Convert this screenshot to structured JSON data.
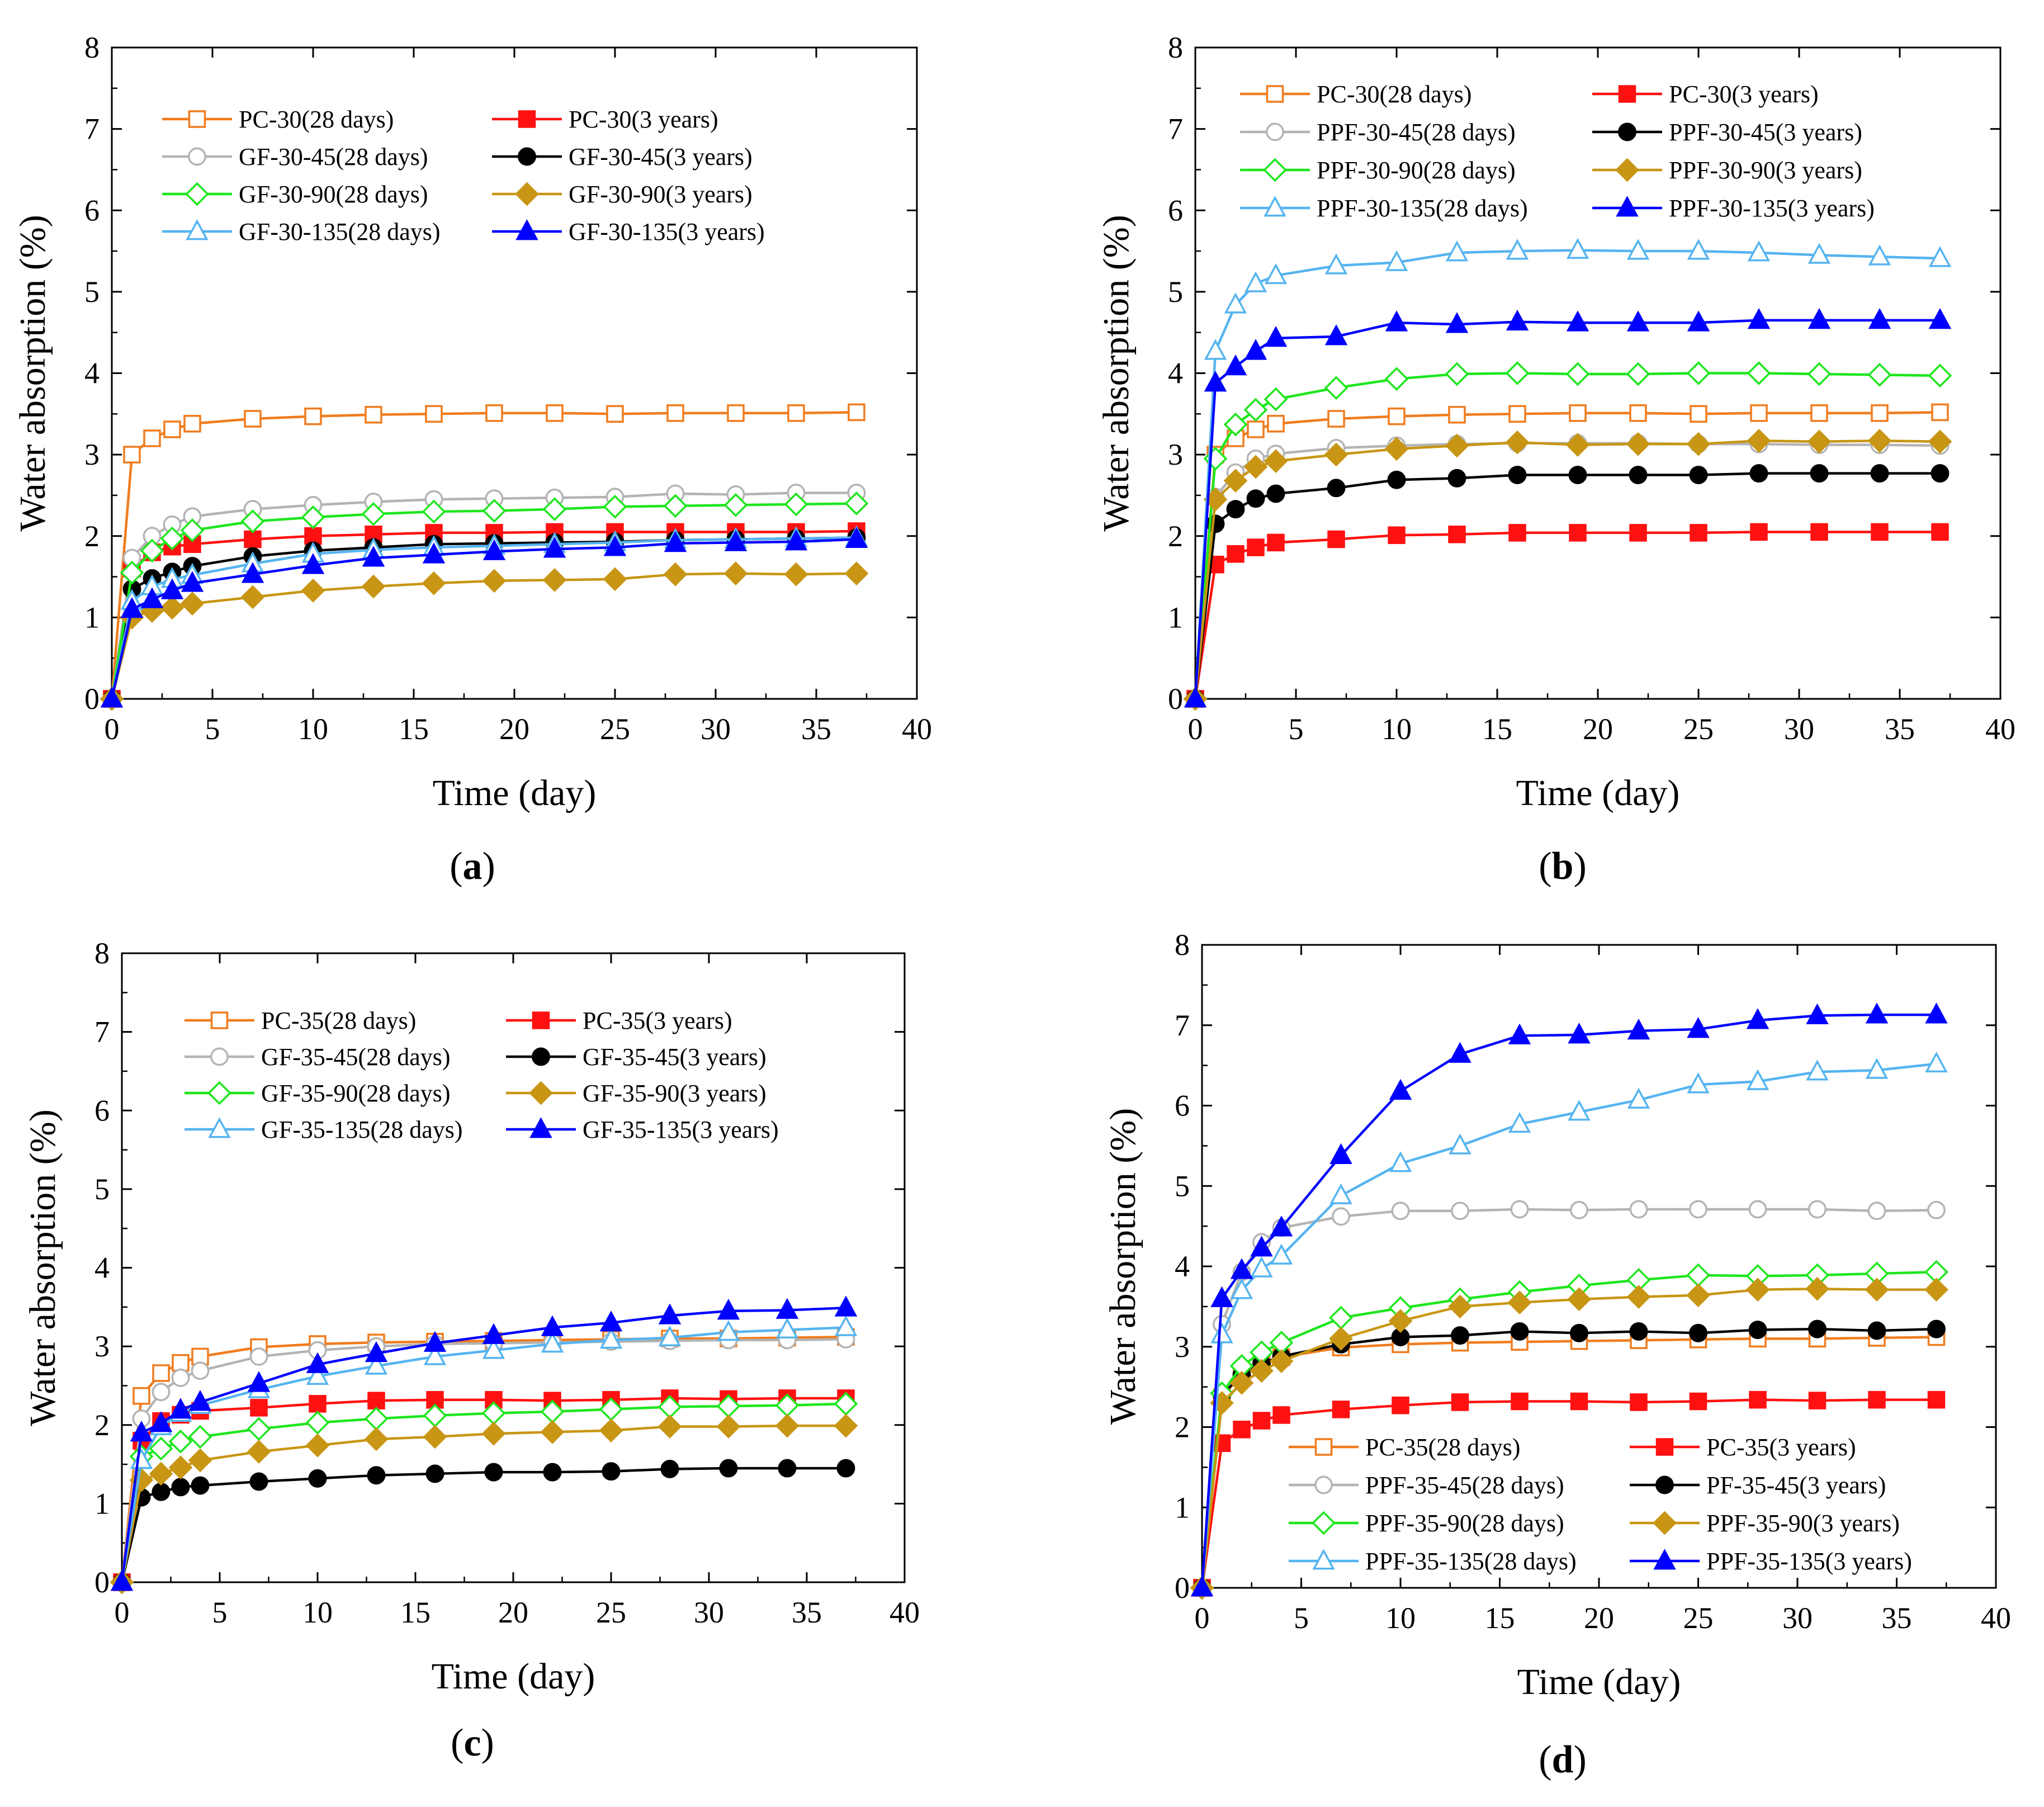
{
  "figure": {
    "captions": [
      "(a)",
      "(b)",
      "(c)",
      "(d)"
    ]
  },
  "styles": {
    "PC-28d": {
      "color": "#f07c1e",
      "marker": "square",
      "filled": false
    },
    "PC-3y": {
      "color": "#ff1111",
      "marker": "square",
      "filled": true
    },
    "45-28d": {
      "color": "#b4b4b4",
      "marker": "circle",
      "filled": false
    },
    "45-3y": {
      "color": "#000000",
      "marker": "circle",
      "filled": true
    },
    "90-28d": {
      "color": "#1ee61e",
      "marker": "diamond",
      "filled": false
    },
    "90-3y": {
      "color": "#c89614",
      "marker": "diamond",
      "filled": true
    },
    "135-28d": {
      "color": "#55b4f0",
      "marker": "triangle",
      "filled": false
    },
    "135-3y": {
      "color": "#0000ff",
      "marker": "triangle",
      "filled": true
    }
  },
  "chart_data": [
    {
      "id": "a",
      "type": "line",
      "caption": "(a)",
      "xlabel": "Time (day)",
      "ylabel": "Water absorption (%)",
      "xlim": [
        0,
        40
      ],
      "ylim": [
        0,
        8
      ],
      "xticks": [
        0,
        5,
        10,
        15,
        20,
        25,
        30,
        35,
        40
      ],
      "yticks": [
        0,
        1,
        2,
        3,
        4,
        5,
        6,
        7,
        8
      ],
      "legend_placement": "top-left",
      "x": [
        0,
        1,
        2,
        3,
        4,
        7,
        10,
        13,
        16,
        19,
        22,
        25,
        28,
        31,
        34,
        37
      ],
      "series": [
        {
          "name": "PC-30(28 days)",
          "style": "PC-28d",
          "values": [
            0,
            3.0,
            3.2,
            3.31,
            3.38,
            3.44,
            3.47,
            3.49,
            3.5,
            3.51,
            3.51,
            3.5,
            3.51,
            3.51,
            3.51,
            3.52
          ]
        },
        {
          "name": "PC-30(3 years)",
          "style": "PC-3y",
          "values": [
            0,
            1.6,
            1.8,
            1.87,
            1.9,
            1.96,
            2.0,
            2.02,
            2.04,
            2.04,
            2.05,
            2.05,
            2.05,
            2.05,
            2.05,
            2.06
          ]
        },
        {
          "name": "GF-30-45(28 days)",
          "style": "45-28d",
          "values": [
            0,
            1.73,
            2.0,
            2.14,
            2.24,
            2.33,
            2.38,
            2.42,
            2.45,
            2.46,
            2.47,
            2.48,
            2.52,
            2.51,
            2.53,
            2.53
          ]
        },
        {
          "name": "GF-30-45(3 years)",
          "style": "45-3y",
          "values": [
            0,
            1.35,
            1.48,
            1.56,
            1.63,
            1.75,
            1.82,
            1.86,
            1.9,
            1.91,
            1.92,
            1.93,
            1.95,
            1.96,
            1.97,
            1.98
          ]
        },
        {
          "name": "GF-30-90(28 days)",
          "style": "90-28d",
          "values": [
            0,
            1.55,
            1.82,
            1.97,
            2.07,
            2.18,
            2.23,
            2.27,
            2.3,
            2.31,
            2.33,
            2.36,
            2.37,
            2.38,
            2.39,
            2.4
          ]
        },
        {
          "name": "GF-30-90(3 years)",
          "style": "90-3y",
          "values": [
            0,
            1.0,
            1.08,
            1.12,
            1.17,
            1.25,
            1.33,
            1.38,
            1.42,
            1.45,
            1.46,
            1.47,
            1.53,
            1.54,
            1.53,
            1.54
          ]
        },
        {
          "name": "GF-30-135(28 days)",
          "style": "135-28d",
          "values": [
            0,
            1.2,
            1.38,
            1.47,
            1.52,
            1.66,
            1.78,
            1.83,
            1.86,
            1.88,
            1.9,
            1.92,
            1.95,
            1.96,
            1.97,
            1.98
          ]
        },
        {
          "name": "GF-30-135(3 years)",
          "style": "135-3y",
          "values": [
            0,
            1.1,
            1.22,
            1.33,
            1.42,
            1.53,
            1.64,
            1.73,
            1.77,
            1.81,
            1.84,
            1.86,
            1.91,
            1.92,
            1.93,
            1.96
          ]
        }
      ]
    },
    {
      "id": "b",
      "type": "line",
      "caption": "(b)",
      "xlabel": "Time (day)",
      "ylabel": "Water absorption (%)",
      "xlim": [
        0,
        40
      ],
      "ylim": [
        0,
        8
      ],
      "xticks": [
        0,
        5,
        10,
        15,
        20,
        25,
        30,
        35,
        40
      ],
      "yticks": [
        0,
        1,
        2,
        3,
        4,
        5,
        6,
        7,
        8
      ],
      "legend_placement": "top",
      "x": [
        0,
        1,
        2,
        3,
        4,
        7,
        10,
        13,
        16,
        19,
        22,
        25,
        28,
        31,
        34,
        37
      ],
      "series": [
        {
          "name": "PC-30(28 days)",
          "style": "PC-28d",
          "values": [
            0,
            3.0,
            3.2,
            3.31,
            3.38,
            3.44,
            3.47,
            3.49,
            3.5,
            3.51,
            3.51,
            3.5,
            3.51,
            3.51,
            3.51,
            3.52
          ]
        },
        {
          "name": "PC-30(3 years)",
          "style": "PC-3y",
          "values": [
            0,
            1.65,
            1.78,
            1.86,
            1.92,
            1.96,
            2.01,
            2.02,
            2.04,
            2.04,
            2.04,
            2.04,
            2.05,
            2.05,
            2.05,
            2.05
          ]
        },
        {
          "name": "PPF-30-45(28 days)",
          "style": "45-28d",
          "values": [
            0,
            2.48,
            2.78,
            2.95,
            3.01,
            3.08,
            3.11,
            3.13,
            3.14,
            3.14,
            3.14,
            3.13,
            3.13,
            3.12,
            3.12,
            3.11
          ]
        },
        {
          "name": "PPF-30-45(3 years)",
          "style": "45-3y",
          "values": [
            0,
            2.15,
            2.33,
            2.46,
            2.52,
            2.59,
            2.69,
            2.71,
            2.75,
            2.75,
            2.75,
            2.75,
            2.77,
            2.77,
            2.77,
            2.77
          ]
        },
        {
          "name": "PPF-30-90(28 days)",
          "style": "90-28d",
          "values": [
            0,
            2.95,
            3.37,
            3.55,
            3.68,
            3.82,
            3.93,
            3.99,
            4.0,
            3.99,
            3.99,
            4.0,
            4.0,
            3.99,
            3.98,
            3.97
          ]
        },
        {
          "name": "PPF-30-90(3 years)",
          "style": "90-3y",
          "values": [
            0,
            2.45,
            2.68,
            2.85,
            2.92,
            3.0,
            3.07,
            3.11,
            3.15,
            3.12,
            3.13,
            3.13,
            3.17,
            3.16,
            3.17,
            3.16
          ]
        },
        {
          "name": "PPF-30-135(28 days)",
          "style": "135-28d",
          "values": [
            0,
            4.27,
            4.84,
            5.1,
            5.2,
            5.32,
            5.36,
            5.48,
            5.5,
            5.51,
            5.5,
            5.5,
            5.48,
            5.45,
            5.43,
            5.41
          ]
        },
        {
          "name": "PPF-30-135(3 years)",
          "style": "135-3y",
          "values": [
            0,
            3.88,
            4.08,
            4.27,
            4.43,
            4.45,
            4.62,
            4.6,
            4.63,
            4.62,
            4.62,
            4.62,
            4.65,
            4.65,
            4.65,
            4.65
          ]
        }
      ]
    },
    {
      "id": "c",
      "type": "line",
      "caption": "(c)",
      "xlabel": "Time (day)",
      "ylabel": "Water absorption (%)",
      "xlim": [
        0,
        40
      ],
      "ylim": [
        0,
        8
      ],
      "xticks": [
        0,
        5,
        10,
        15,
        20,
        25,
        30,
        35,
        40
      ],
      "yticks": [
        0,
        1,
        2,
        3,
        4,
        5,
        6,
        7,
        8
      ],
      "legend_placement": "top-left",
      "x": [
        0,
        1,
        2,
        3,
        4,
        7,
        10,
        13,
        16,
        19,
        22,
        25,
        28,
        31,
        34,
        37
      ],
      "series": [
        {
          "name": "PC-35(28 days)",
          "style": "PC-28d",
          "values": [
            0,
            2.37,
            2.66,
            2.79,
            2.87,
            2.99,
            3.03,
            3.05,
            3.06,
            3.07,
            3.08,
            3.09,
            3.1,
            3.1,
            3.11,
            3.12
          ]
        },
        {
          "name": "PC-35(3 years)",
          "style": "PC-3y",
          "values": [
            0,
            1.8,
            2.05,
            2.13,
            2.18,
            2.22,
            2.27,
            2.31,
            2.32,
            2.32,
            2.31,
            2.32,
            2.34,
            2.33,
            2.34,
            2.34
          ]
        },
        {
          "name": "GF-35-45(28 days)",
          "style": "45-28d",
          "values": [
            0,
            2.08,
            2.42,
            2.6,
            2.69,
            2.87,
            2.95,
            3.0,
            3.03,
            3.04,
            3.05,
            3.06,
            3.07,
            3.08,
            3.08,
            3.09
          ]
        },
        {
          "name": "GF-35-45(3 years)",
          "style": "45-3y",
          "values": [
            0,
            1.08,
            1.15,
            1.21,
            1.23,
            1.28,
            1.32,
            1.36,
            1.38,
            1.4,
            1.4,
            1.41,
            1.44,
            1.45,
            1.45,
            1.45
          ]
        },
        {
          "name": "GF-35-90(28 days)",
          "style": "90-28d",
          "values": [
            0,
            1.6,
            1.7,
            1.79,
            1.85,
            1.95,
            2.03,
            2.08,
            2.12,
            2.15,
            2.17,
            2.2,
            2.23,
            2.24,
            2.25,
            2.27
          ]
        },
        {
          "name": "GF-35-90(3 years)",
          "style": "90-3y",
          "values": [
            0,
            1.3,
            1.38,
            1.46,
            1.55,
            1.66,
            1.74,
            1.82,
            1.85,
            1.89,
            1.91,
            1.93,
            1.98,
            1.98,
            1.99,
            1.99
          ]
        },
        {
          "name": "GF-35-135(28 days)",
          "style": "135-28d",
          "values": [
            0,
            1.55,
            1.98,
            2.15,
            2.25,
            2.45,
            2.62,
            2.75,
            2.87,
            2.95,
            3.03,
            3.08,
            3.11,
            3.18,
            3.21,
            3.24
          ]
        },
        {
          "name": "GF-35-135(3 years)",
          "style": "135-3y",
          "values": [
            0,
            1.9,
            2.02,
            2.19,
            2.29,
            2.53,
            2.77,
            2.91,
            3.04,
            3.14,
            3.24,
            3.3,
            3.39,
            3.45,
            3.46,
            3.49
          ]
        }
      ]
    },
    {
      "id": "d",
      "type": "line",
      "caption": "(d)",
      "xlabel": "Time (day)",
      "ylabel": "Water absorption (%)",
      "xlim": [
        0,
        40
      ],
      "ylim": [
        0,
        8
      ],
      "xticks": [
        0,
        5,
        10,
        15,
        20,
        25,
        30,
        35,
        40
      ],
      "yticks": [
        0,
        1,
        2,
        3,
        4,
        5,
        6,
        7,
        8
      ],
      "legend_placement": "bottom",
      "x": [
        0,
        1,
        2,
        3,
        4,
        7,
        10,
        13,
        16,
        19,
        22,
        25,
        28,
        31,
        34,
        37
      ],
      "series": [
        {
          "name": "PC-35(28 days)",
          "style": "PC-28d",
          "values": [
            0,
            2.37,
            2.66,
            2.79,
            2.87,
            2.99,
            3.03,
            3.05,
            3.06,
            3.07,
            3.08,
            3.09,
            3.1,
            3.1,
            3.11,
            3.12
          ]
        },
        {
          "name": "PC-35(3 years)",
          "style": "PC-3y",
          "values": [
            0,
            1.8,
            1.97,
            2.08,
            2.15,
            2.22,
            2.27,
            2.31,
            2.32,
            2.32,
            2.31,
            2.32,
            2.34,
            2.33,
            2.34,
            2.34
          ]
        },
        {
          "name": "PPF-35-45(28 days)",
          "style": "45-28d",
          "values": [
            0,
            3.28,
            3.93,
            4.3,
            4.48,
            4.62,
            4.69,
            4.69,
            4.71,
            4.7,
            4.71,
            4.71,
            4.71,
            4.71,
            4.69,
            4.7
          ]
        },
        {
          "name": "PF-35-45(3 years)",
          "style": "45-3y",
          "values": [
            0,
            2.4,
            2.65,
            2.79,
            2.88,
            3.03,
            3.12,
            3.14,
            3.19,
            3.17,
            3.19,
            3.17,
            3.21,
            3.22,
            3.2,
            3.22
          ]
        },
        {
          "name": "PPF-35-90(28 days)",
          "style": "90-28d",
          "values": [
            0,
            2.42,
            2.76,
            2.93,
            3.05,
            3.36,
            3.48,
            3.59,
            3.68,
            3.76,
            3.83,
            3.89,
            3.88,
            3.89,
            3.91,
            3.93
          ]
        },
        {
          "name": "PPF-35-90(3 years)",
          "style": "90-3y",
          "values": [
            0,
            2.3,
            2.55,
            2.7,
            2.82,
            3.1,
            3.32,
            3.5,
            3.55,
            3.59,
            3.62,
            3.64,
            3.71,
            3.72,
            3.71,
            3.71
          ]
        },
        {
          "name": "PPF-35-135(28 days)",
          "style": "135-28d",
          "values": [
            0,
            3.15,
            3.7,
            3.97,
            4.13,
            4.88,
            5.28,
            5.5,
            5.77,
            5.92,
            6.07,
            6.26,
            6.3,
            6.42,
            6.44,
            6.52
          ]
        },
        {
          "name": "PPF-35-135(3 years)",
          "style": "135-3y",
          "values": [
            0,
            3.6,
            3.95,
            4.23,
            4.48,
            5.38,
            6.18,
            6.64,
            6.87,
            6.88,
            6.93,
            6.95,
            7.06,
            7.12,
            7.13,
            7.13
          ]
        }
      ]
    }
  ]
}
